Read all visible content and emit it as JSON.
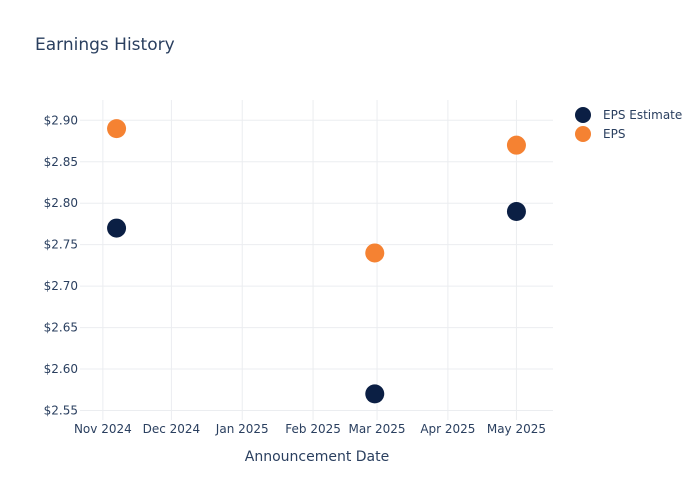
{
  "chart_data": {
    "type": "scatter",
    "title": "Earnings History",
    "xlabel": "Announcement Date",
    "ylabel": "",
    "x_ticks": [
      "Nov 2024",
      "Dec 2024",
      "Jan 2025",
      "Feb 2025",
      "Mar 2025",
      "Apr 2025",
      "May 2025"
    ],
    "x_tick_dates": [
      "2024-11-01",
      "2024-12-01",
      "2025-01-01",
      "2025-02-01",
      "2025-03-01",
      "2025-04-01",
      "2025-05-01"
    ],
    "xlim": [
      "2024-10-22",
      "2025-05-17"
    ],
    "y_ticks": [
      "$2.55",
      "$2.60",
      "$2.65",
      "$2.70",
      "$2.75",
      "$2.80",
      "$2.85",
      "$2.90"
    ],
    "y_tick_values": [
      2.55,
      2.6,
      2.65,
      2.7,
      2.75,
      2.8,
      2.85,
      2.9
    ],
    "ylim": [
      2.5385,
      2.9245
    ],
    "grid": true,
    "legend_position": "top-right",
    "series": [
      {
        "name": "EPS Estimate",
        "color": "#0b1f44",
        "points": [
          {
            "x": "2024-11-07",
            "y": 2.77
          },
          {
            "x": "2025-02-28",
            "y": 2.57
          },
          {
            "x": "2025-05-01",
            "y": 2.79
          }
        ]
      },
      {
        "name": "EPS",
        "color": "#f58232",
        "points": [
          {
            "x": "2024-11-07",
            "y": 2.89
          },
          {
            "x": "2025-02-28",
            "y": 2.74
          },
          {
            "x": "2025-05-01",
            "y": 2.87
          }
        ]
      }
    ]
  }
}
